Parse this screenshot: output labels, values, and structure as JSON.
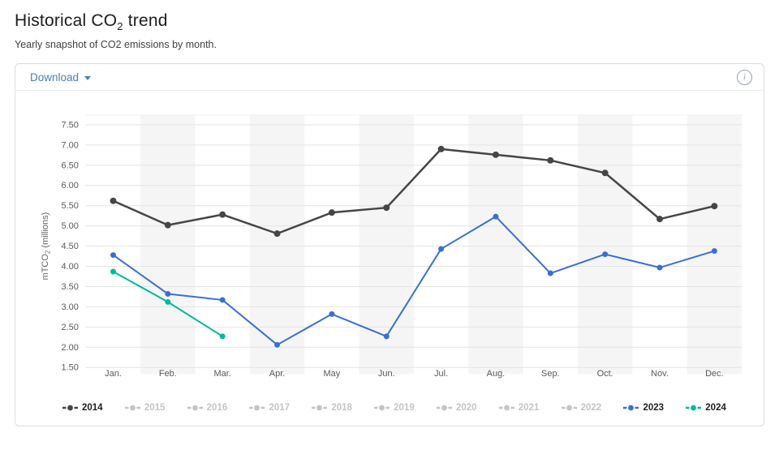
{
  "page": {
    "title_prefix": "Historical CO",
    "title_sub": "2",
    "title_suffix": " trend",
    "subtitle": "Yearly snapshot of CO2 emissions by month."
  },
  "toolbar": {
    "download_label": "Download",
    "caret_icon": "chevron-down",
    "info_icon": "circled-i",
    "info_glyph": "i"
  },
  "colors": {
    "link": "#4a7fb5",
    "gridline": "#e4e4e4",
    "band": "#f5f5f5",
    "axis_text": "#595959",
    "axis_title": "#666666",
    "disabled_legend": "#c4c4c4",
    "series_2014": "#454545",
    "series_2023": "#3a6fd0",
    "series_2024": "#00b89c"
  },
  "chart_data": {
    "type": "line",
    "title": "Historical CO2 trend",
    "xlabel": "",
    "ylabel": "mTCO2 (millions)",
    "ylabel_prefix": "mTCO",
    "ylabel_sub": "2",
    "ylabel_suffix": " (millions)",
    "ylim": [
      1.5,
      7.5
    ],
    "ytick_step": 0.5,
    "ytick_labels": [
      "7.50",
      "7.00",
      "6.50",
      "6.00",
      "5.50",
      "5.00",
      "4.50",
      "4.00",
      "3.50",
      "3.00",
      "2.50",
      "2.00",
      "1.50"
    ],
    "grid": true,
    "banded_columns": [
      "Feb.",
      "Apr.",
      "Jun.",
      "Aug.",
      "Oct.",
      "Dec."
    ],
    "categories": [
      "Jan.",
      "Feb.",
      "Mar.",
      "Apr.",
      "May",
      "Jun.",
      "Jul.",
      "Aug.",
      "Sep.",
      "Oct.",
      "Nov.",
      "Dec."
    ],
    "series": [
      {
        "name": "2014",
        "color": "#454545",
        "values": [
          5.62,
          5.02,
          5.28,
          4.81,
          5.33,
          5.45,
          6.9,
          6.76,
          6.62,
          6.31,
          5.17,
          5.49
        ]
      },
      {
        "name": "2023",
        "color": "#3a6fd0",
        "values": [
          4.28,
          3.32,
          3.17,
          2.06,
          2.82,
          2.27,
          4.43,
          5.23,
          3.83,
          4.3,
          3.97,
          4.38
        ]
      },
      {
        "name": "2024",
        "color": "#00b89c",
        "values": [
          3.87,
          3.12,
          2.27,
          null,
          null,
          null,
          null,
          null,
          null,
          null,
          null,
          null
        ]
      }
    ],
    "legend": {
      "position": "bottom",
      "items": [
        {
          "label": "2014",
          "state": "active",
          "color": "#454545"
        },
        {
          "label": "2015",
          "state": "disabled",
          "color": "#c4c4c4"
        },
        {
          "label": "2016",
          "state": "disabled",
          "color": "#c4c4c4"
        },
        {
          "label": "2017",
          "state": "disabled",
          "color": "#c4c4c4"
        },
        {
          "label": "2018",
          "state": "disabled",
          "color": "#c4c4c4"
        },
        {
          "label": "2019",
          "state": "disabled",
          "color": "#c4c4c4"
        },
        {
          "label": "2020",
          "state": "disabled",
          "color": "#c4c4c4"
        },
        {
          "label": "2021",
          "state": "disabled",
          "color": "#c4c4c4"
        },
        {
          "label": "2022",
          "state": "disabled",
          "color": "#c4c4c4"
        },
        {
          "label": "2023",
          "state": "active",
          "color": "#3a6fd0"
        },
        {
          "label": "2024",
          "state": "active",
          "color": "#00b89c"
        }
      ]
    }
  }
}
